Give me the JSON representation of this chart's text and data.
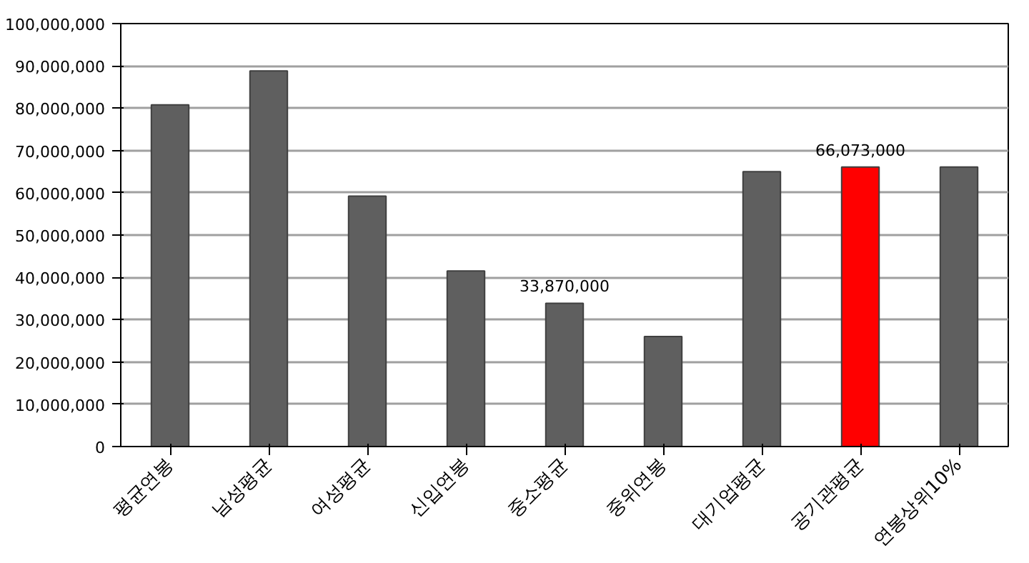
{
  "chart_data": {
    "type": "bar",
    "categories": [
      "평균연봉",
      "남성평균",
      "여성평균",
      "신입연봉",
      "중소평균",
      "중위연봉",
      "대기업평균",
      "공기관평균",
      "연봉상위10%"
    ],
    "values": [
      80800000,
      88800000,
      59200000,
      41500000,
      33870000,
      26000000,
      65000000,
      66073000,
      66100000
    ],
    "colors": [
      "#5f5f5f",
      "#5f5f5f",
      "#5f5f5f",
      "#5f5f5f",
      "#5f5f5f",
      "#5f5f5f",
      "#5f5f5f",
      "#ff0000",
      "#5f5f5f"
    ],
    "value_labels": [
      null,
      null,
      null,
      null,
      "33,870,000",
      null,
      null,
      "66,073,000",
      null
    ],
    "ylim": [
      0,
      100000000
    ],
    "yticks": [
      {
        "value": 0,
        "label": "0"
      },
      {
        "value": 10000000,
        "label": "10,000,000"
      },
      {
        "value": 20000000,
        "label": "20,000,000"
      },
      {
        "value": 30000000,
        "label": "30,000,000"
      },
      {
        "value": 40000000,
        "label": "40,000,000"
      },
      {
        "value": 50000000,
        "label": "50,000,000"
      },
      {
        "value": 60000000,
        "label": "60,000,000"
      },
      {
        "value": 70000000,
        "label": "70,000,000"
      },
      {
        "value": 80000000,
        "label": "80,000,000"
      },
      {
        "value": 90000000,
        "label": "90,000,000"
      },
      {
        "value": 100000000,
        "label": "100,000,000"
      }
    ],
    "grid": "y"
  }
}
